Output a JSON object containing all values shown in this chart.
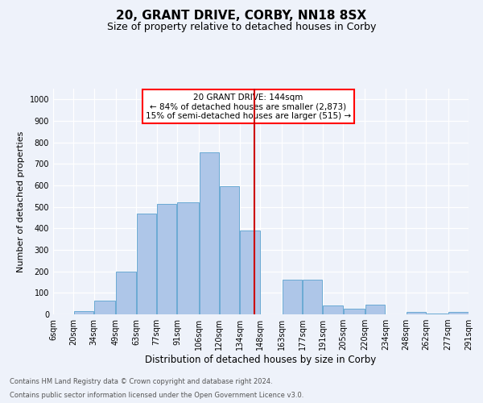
{
  "title": "20, GRANT DRIVE, CORBY, NN18 8SX",
  "subtitle": "Size of property relative to detached houses in Corby",
  "xlabel": "Distribution of detached houses by size in Corby",
  "ylabel": "Number of detached properties",
  "footnote1": "Contains HM Land Registry data © Crown copyright and database right 2024.",
  "footnote2": "Contains public sector information licensed under the Open Government Licence v3.0.",
  "annotation_title": "20 GRANT DRIVE: 144sqm",
  "annotation_line1": "← 84% of detached houses are smaller (2,873)",
  "annotation_line2": "15% of semi-detached houses are larger (515) →",
  "property_size": 144,
  "bar_left_edges": [
    6,
    20,
    34,
    49,
    63,
    77,
    91,
    106,
    120,
    134,
    148,
    163,
    177,
    191,
    205,
    220,
    234,
    248,
    262,
    277
  ],
  "bar_widths": [
    14,
    14,
    15,
    14,
    14,
    14,
    15,
    14,
    14,
    14,
    15,
    14,
    14,
    14,
    15,
    14,
    14,
    14,
    15,
    14
  ],
  "bar_heights": [
    0,
    15,
    65,
    200,
    470,
    515,
    520,
    755,
    595,
    390,
    0,
    160,
    160,
    40,
    25,
    45,
    0,
    10,
    5,
    10
  ],
  "bar_color": "#aec6e8",
  "bar_edge_color": "#6aaad4",
  "vline_x": 144,
  "vline_color": "#cc0000",
  "ylim": [
    0,
    1050
  ],
  "yticks": [
    0,
    100,
    200,
    300,
    400,
    500,
    600,
    700,
    800,
    900,
    1000
  ],
  "xlim": [
    6,
    291
  ],
  "xtick_labels": [
    "6sqm",
    "20sqm",
    "34sqm",
    "49sqm",
    "63sqm",
    "77sqm",
    "91sqm",
    "106sqm",
    "120sqm",
    "134sqm",
    "148sqm",
    "163sqm",
    "177sqm",
    "191sqm",
    "205sqm",
    "220sqm",
    "234sqm",
    "248sqm",
    "262sqm",
    "277sqm",
    "291sqm"
  ],
  "xtick_positions": [
    6,
    20,
    34,
    49,
    63,
    77,
    91,
    106,
    120,
    134,
    148,
    163,
    177,
    191,
    205,
    220,
    234,
    248,
    262,
    277,
    291
  ],
  "bg_color": "#eef2fa",
  "plot_bg_color": "#eef2fa",
  "grid_color": "#ffffff",
  "title_fontsize": 11,
  "subtitle_fontsize": 9,
  "ylabel_fontsize": 8,
  "xlabel_fontsize": 8.5,
  "tick_fontsize": 7,
  "footnote_fontsize": 6
}
